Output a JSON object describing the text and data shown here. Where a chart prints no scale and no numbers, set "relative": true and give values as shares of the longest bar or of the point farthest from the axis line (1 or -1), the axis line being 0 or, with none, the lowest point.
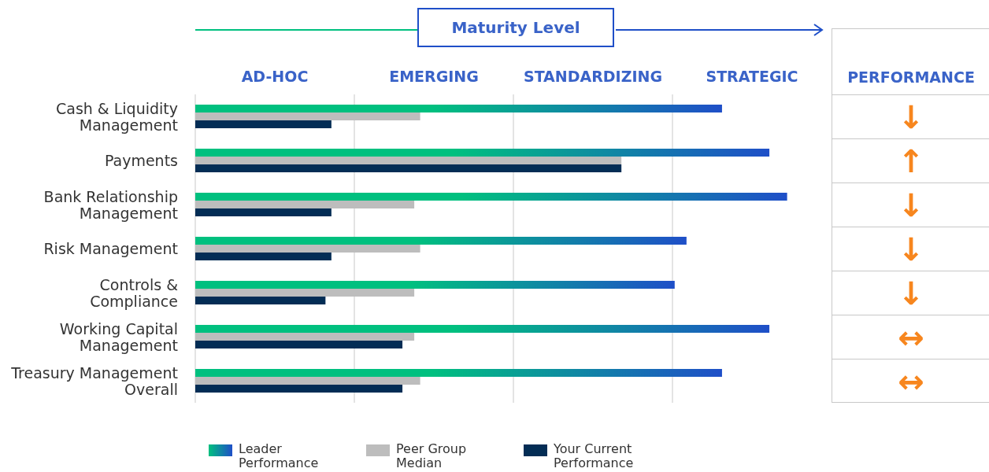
{
  "chart_data": {
    "type": "bar",
    "orientation": "horizontal",
    "relative": true,
    "categories": [
      "Cash & Liquidity Management",
      "Payments",
      "Bank Relationship Management",
      "Risk Management",
      "Controls & Compliance",
      "Working Capital Management",
      "Treasury Management Overall"
    ],
    "series": [
      {
        "name": "Leader Performance",
        "color": "#00c07f",
        "values": [
          0.89,
          0.97,
          1,
          0.83,
          0.81,
          0.97,
          0.89
        ]
      },
      {
        "name": "Peer Group Median",
        "color": "#bdbdbd",
        "values": [
          0.38,
          0.72,
          0.37,
          0.38,
          0.37,
          0.37,
          0.38
        ]
      },
      {
        "name": "Your Current Performance",
        "color": "#032d55",
        "values": [
          0.23,
          0.72,
          0.23,
          0.23,
          0.22,
          0.35,
          0.35
        ]
      }
    ],
    "grid": "x",
    "legend": "bottom left",
    "annotations": [
      "Maturity Level",
      "AD-HOC",
      "EMERGING",
      "STANDARDIZING",
      "STRATEGIC",
      "PERFORMANCE",
      "↓",
      "↑",
      "↓",
      "↓",
      "↓",
      "↔",
      "↔"
    ]
  }
}
